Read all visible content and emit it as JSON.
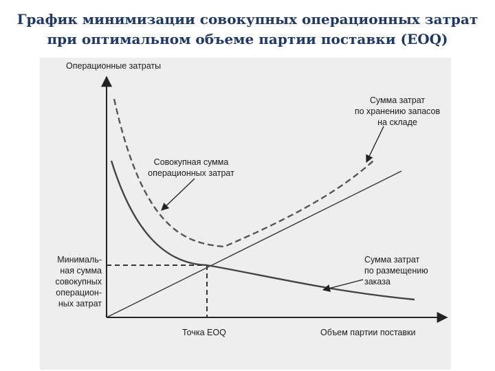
{
  "slide": {
    "title_line1": "График минимизации совокупных операционных затрат",
    "title_line2": "при оптимальном объеме партии поставки (EOQ)"
  },
  "chart_data": {
    "type": "line",
    "ylabel": "Операционные затраты",
    "xlabel": "Объем партии поставки",
    "x_marker_label": "Точка EOQ",
    "y_marker_label": [
      "Минималь-",
      "ная сумма",
      "совокупных",
      "операцион-",
      "ных затрат"
    ],
    "axes_ticks": "none",
    "series": [
      {
        "name": "Сумма затрат по хранению запасов на складе",
        "label_lines": [
          "Сумма затрат",
          "по хранению запасов",
          "на складе"
        ],
        "style": "solid-thin",
        "color": "#333333"
      },
      {
        "name": "Сумма затрат по размещению заказа",
        "label_lines": [
          "Сумма затрат",
          "по размещению",
          "заказа"
        ],
        "style": "solid-thick",
        "color": "#444444"
      },
      {
        "name": "Совокупная сумма операционных затрат",
        "label_lines": [
          "Совокупная сумма",
          "операционных затрат"
        ],
        "style": "dashed",
        "color": "#555555"
      }
    ]
  }
}
